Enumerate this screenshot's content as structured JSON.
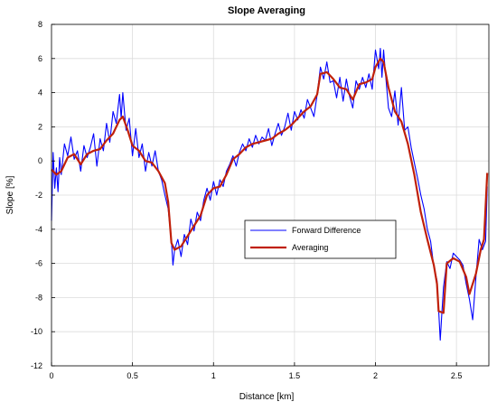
{
  "chart_data": {
    "type": "line",
    "title": "Slope Averaging",
    "xlabel": "Distance [km]",
    "ylabel": "Slope [%]",
    "xlim": [
      0,
      2.7
    ],
    "ylim": [
      -12,
      8
    ],
    "grid": true,
    "legend_position": "center-right",
    "x_ticks": [
      {
        "value": 0,
        "label": "0"
      },
      {
        "value": 0.5,
        "label": "0.5"
      },
      {
        "value": 1,
        "label": "1"
      },
      {
        "value": 1.5,
        "label": "1.5"
      },
      {
        "value": 2,
        "label": "2"
      },
      {
        "value": 2.5,
        "label": "2.5"
      }
    ],
    "y_ticks": [
      {
        "value": -12,
        "label": "-12"
      },
      {
        "value": -10,
        "label": "-10"
      },
      {
        "value": -8,
        "label": "-8"
      },
      {
        "value": -6,
        "label": "-6"
      },
      {
        "value": -4,
        "label": "-4"
      },
      {
        "value": -2,
        "label": "-2"
      },
      {
        "value": 0,
        "label": "0"
      },
      {
        "value": 2,
        "label": "2"
      },
      {
        "value": 4,
        "label": "4"
      },
      {
        "value": 6,
        "label": "6"
      },
      {
        "value": 8,
        "label": "8"
      }
    ],
    "series": [
      {
        "name": "Forward Difference",
        "color": "#0000ff",
        "x": [
          0,
          0.01,
          0.02,
          0.03,
          0.04,
          0.05,
          0.06,
          0.08,
          0.1,
          0.12,
          0.14,
          0.16,
          0.18,
          0.2,
          0.22,
          0.24,
          0.26,
          0.28,
          0.3,
          0.32,
          0.34,
          0.36,
          0.38,
          0.4,
          0.42,
          0.43,
          0.44,
          0.46,
          0.48,
          0.5,
          0.52,
          0.54,
          0.56,
          0.58,
          0.6,
          0.62,
          0.64,
          0.66,
          0.68,
          0.7,
          0.72,
          0.74,
          0.75,
          0.76,
          0.78,
          0.8,
          0.82,
          0.84,
          0.86,
          0.88,
          0.9,
          0.92,
          0.94,
          0.96,
          0.98,
          1.0,
          1.02,
          1.04,
          1.06,
          1.08,
          1.1,
          1.12,
          1.14,
          1.16,
          1.18,
          1.2,
          1.22,
          1.24,
          1.26,
          1.28,
          1.3,
          1.32,
          1.34,
          1.36,
          1.38,
          1.4,
          1.42,
          1.44,
          1.46,
          1.48,
          1.5,
          1.52,
          1.54,
          1.56,
          1.58,
          1.6,
          1.62,
          1.64,
          1.66,
          1.68,
          1.7,
          1.72,
          1.74,
          1.76,
          1.78,
          1.8,
          1.82,
          1.84,
          1.86,
          1.88,
          1.9,
          1.92,
          1.94,
          1.96,
          1.98,
          2.0,
          2.02,
          2.03,
          2.04,
          2.05,
          2.06,
          2.08,
          2.1,
          2.12,
          2.14,
          2.16,
          2.18,
          2.2,
          2.22,
          2.24,
          2.26,
          2.28,
          2.3,
          2.32,
          2.34,
          2.36,
          2.38,
          2.39,
          2.4,
          2.41,
          2.42,
          2.44,
          2.46,
          2.48,
          2.5,
          2.52,
          2.54,
          2.56,
          2.58,
          2.6,
          2.62,
          2.64,
          2.66,
          2.68,
          2.69
        ],
        "values": [
          -3.5,
          0.5,
          -1.6,
          -0.4,
          -1.8,
          0.2,
          -0.8,
          1.0,
          0.3,
          1.4,
          0.1,
          0.6,
          -0.6,
          0.9,
          0.2,
          0.8,
          1.6,
          -0.3,
          1.3,
          0.6,
          2.2,
          1.1,
          2.9,
          2.2,
          3.9,
          2.5,
          4.0,
          1.8,
          2.5,
          0.3,
          1.9,
          0.2,
          1.0,
          -0.6,
          0.5,
          -0.3,
          0.6,
          -0.6,
          -1.1,
          -2.0,
          -2.8,
          -4.7,
          -6.1,
          -5.2,
          -4.6,
          -5.6,
          -4.3,
          -4.9,
          -3.4,
          -4.1,
          -3.0,
          -3.5,
          -2.3,
          -1.6,
          -2.3,
          -1.2,
          -2.0,
          -1.1,
          -1.5,
          -0.6,
          -0.2,
          0.3,
          -0.3,
          0.5,
          1.0,
          0.6,
          1.3,
          0.8,
          1.5,
          1.0,
          1.4,
          1.2,
          1.9,
          0.9,
          1.6,
          2.2,
          1.5,
          2.0,
          2.8,
          1.8,
          2.9,
          2.4,
          3.0,
          2.5,
          3.6,
          3.1,
          2.6,
          3.9,
          5.5,
          4.8,
          5.8,
          4.6,
          4.7,
          3.7,
          4.9,
          3.5,
          4.8,
          3.8,
          3.1,
          4.7,
          4.2,
          4.9,
          4.3,
          5.1,
          4.2,
          6.5,
          5.4,
          6.6,
          4.9,
          6.5,
          5.3,
          3.1,
          2.6,
          4.1,
          2.1,
          4.3,
          1.8,
          2.0,
          0.8,
          -0.1,
          -1.0,
          -2.0,
          -2.8,
          -4.0,
          -4.7,
          -6.2,
          -7.0,
          -8.7,
          -10.5,
          -8.9,
          -7.4,
          -5.9,
          -6.3,
          -5.4,
          -5.6,
          -5.8,
          -6.1,
          -7.2,
          -8.1,
          -9.3,
          -6.8,
          -4.6,
          -5.2,
          -4.7,
          -1.5
        ]
      },
      {
        "name": "Averaging",
        "color": "#c0200a",
        "x": [
          0,
          0.03,
          0.06,
          0.1,
          0.14,
          0.18,
          0.22,
          0.26,
          0.3,
          0.34,
          0.38,
          0.42,
          0.44,
          0.47,
          0.5,
          0.54,
          0.58,
          0.62,
          0.66,
          0.7,
          0.72,
          0.74,
          0.76,
          0.8,
          0.84,
          0.88,
          0.92,
          0.96,
          1.0,
          1.04,
          1.08,
          1.12,
          1.16,
          1.2,
          1.24,
          1.28,
          1.32,
          1.36,
          1.4,
          1.44,
          1.48,
          1.52,
          1.56,
          1.6,
          1.64,
          1.66,
          1.7,
          1.74,
          1.78,
          1.82,
          1.86,
          1.9,
          1.94,
          1.98,
          2.0,
          2.03,
          2.05,
          2.08,
          2.12,
          2.16,
          2.2,
          2.24,
          2.28,
          2.32,
          2.36,
          2.38,
          2.39,
          2.42,
          2.44,
          2.48,
          2.52,
          2.56,
          2.58,
          2.62,
          2.65,
          2.67,
          2.69
        ],
        "values": [
          -0.5,
          -0.8,
          -0.6,
          0.2,
          0.4,
          -0.2,
          0.4,
          0.6,
          0.7,
          1.2,
          1.6,
          2.4,
          2.6,
          1.8,
          0.9,
          0.6,
          0.0,
          -0.1,
          -0.6,
          -1.3,
          -2.4,
          -4.8,
          -5.2,
          -5.0,
          -4.4,
          -3.8,
          -3.2,
          -2.0,
          -1.6,
          -1.5,
          -0.8,
          0.1,
          0.4,
          0.8,
          1.0,
          1.1,
          1.2,
          1.3,
          1.6,
          1.8,
          2.1,
          2.5,
          2.9,
          3.2,
          3.9,
          5.1,
          5.2,
          4.8,
          4.3,
          4.2,
          3.6,
          4.5,
          4.6,
          4.8,
          5.5,
          6.0,
          5.8,
          4.3,
          2.9,
          2.3,
          1.0,
          -0.8,
          -3.0,
          -4.6,
          -6.1,
          -7.2,
          -8.8,
          -8.9,
          -6.0,
          -5.7,
          -5.9,
          -6.8,
          -7.8,
          -6.6,
          -5.2,
          -4.6,
          -0.7
        ]
      }
    ]
  }
}
